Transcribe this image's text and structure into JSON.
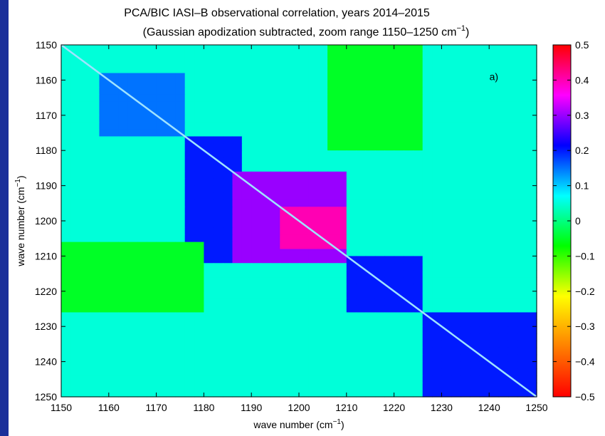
{
  "page": {
    "background": "#1a2f9a"
  },
  "chart_data": {
    "type": "heatmap",
    "title": "PCA/BIC IASI–B observational correlation, years 2014–2015",
    "subtitle": "(Gaussian apodization subtracted, zoom range 1150–1250 cm",
    "subtitle_superscript": "−1",
    "subtitle_close": ")",
    "xlabel": "wave number (cm",
    "xlabel_superscript": "−1",
    "xlabel_close": ")",
    "ylabel": "wave number (cm",
    "ylabel_superscript": "−1",
    "ylabel_close": ")",
    "xlim": [
      1150,
      1250
    ],
    "ylim": [
      1150,
      1250
    ],
    "y_reversed": true,
    "x_ticks": [
      "1150",
      "1160",
      "1170",
      "1180",
      "1190",
      "1200",
      "1210",
      "1220",
      "1230",
      "1240",
      "1250"
    ],
    "y_ticks": [
      "1150",
      "1160",
      "1170",
      "1180",
      "1190",
      "1200",
      "1210",
      "1220",
      "1230",
      "1240",
      "1250"
    ],
    "colorbar": {
      "min": -0.5,
      "max": 0.5,
      "ticks": [
        "0.5",
        "0.4",
        "0.3",
        "0.2",
        "0.1",
        "0",
        "−0.1",
        "−0.2",
        "−0.3",
        "−0.4",
        "−0.5"
      ],
      "colors": [
        "#ff0000",
        "#ff8000",
        "#ffff00",
        "#00ff00",
        "#00ffff",
        "#0000ff",
        "#ff00ff",
        "#ff0000"
      ]
    },
    "annotation": {
      "text": "a)",
      "x": 1241,
      "y": 1159
    },
    "diagonal_value": 1.0,
    "block_regions": [
      {
        "x_range": [
          1176,
          1187
        ],
        "y_range": [
          1176,
          1212
        ],
        "value": 0.2
      },
      {
        "x_range": [
          1187,
          1210
        ],
        "y_range": [
          1187,
          1212
        ],
        "value": 0.3
      },
      {
        "x_range": [
          1197,
          1210
        ],
        "y_range": [
          1197,
          1208
        ],
        "value": 0.4
      },
      {
        "x_range": [
          1210,
          1226
        ],
        "y_range": [
          1210,
          1225
        ],
        "value": 0.2
      },
      {
        "x_range": [
          1226,
          1250
        ],
        "y_range": [
          1226,
          1250
        ],
        "value": 0.2
      },
      {
        "x_range": [
          1158,
          1176
        ],
        "y_range": [
          1158,
          1176
        ],
        "value": 0.15
      },
      {
        "x_range": [
          1150,
          1180
        ],
        "y_range": [
          1207,
          1225
        ],
        "value": -0.05
      },
      {
        "x_range": [
          1207,
          1225
        ],
        "y_range": [
          1150,
          1180
        ],
        "value": -0.05
      }
    ],
    "background_value": 0.05
  }
}
